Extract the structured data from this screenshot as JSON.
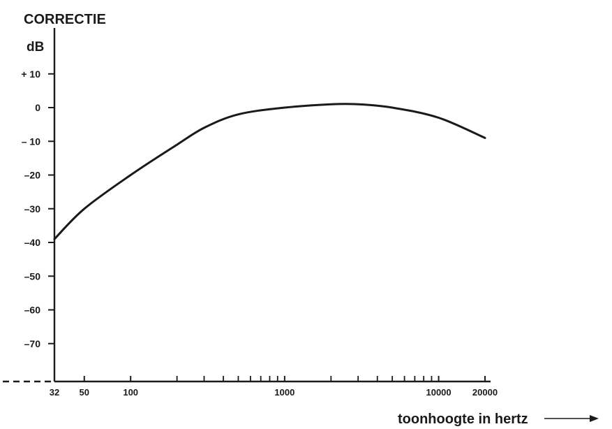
{
  "chart_data": {
    "type": "line",
    "title": "CORRECTIE",
    "ylabel": "dB",
    "xlabel": "toonhoogte in hertz",
    "x_scale": "log",
    "xlim": [
      32,
      20000
    ],
    "ylim": [
      -80,
      10
    ],
    "y_ticks": [
      {
        "value": 10,
        "label": "+ 10"
      },
      {
        "value": 0,
        "label": "0"
      },
      {
        "value": -10,
        "label": "– 10"
      },
      {
        "value": -20,
        "label": "–20"
      },
      {
        "value": -30,
        "label": "–30"
      },
      {
        "value": -40,
        "label": "–40"
      },
      {
        "value": -50,
        "label": "–50"
      },
      {
        "value": -60,
        "label": "–60"
      },
      {
        "value": -70,
        "label": "–70"
      }
    ],
    "x_tick_labels": [
      {
        "value": 32,
        "label": "32"
      },
      {
        "value": 50,
        "label": "50"
      },
      {
        "value": 100,
        "label": "100"
      },
      {
        "value": 1000,
        "label": "1000"
      },
      {
        "value": 10000,
        "label": "10000"
      },
      {
        "value": 20000,
        "label": "20000"
      }
    ],
    "x_minor_ticks": [
      200,
      300,
      400,
      500,
      600,
      700,
      800,
      900,
      2000,
      3000,
      4000,
      5000,
      6000,
      7000,
      8000,
      9000
    ],
    "series": [
      {
        "x": [
          32,
          50,
          100,
          200,
          300,
          500,
          1000,
          2000,
          3000,
          5000,
          10000,
          20000
        ],
        "y": [
          -39,
          -30,
          -20,
          -11,
          -6,
          -2,
          0,
          1,
          1,
          0,
          -3,
          -9
        ]
      }
    ]
  }
}
